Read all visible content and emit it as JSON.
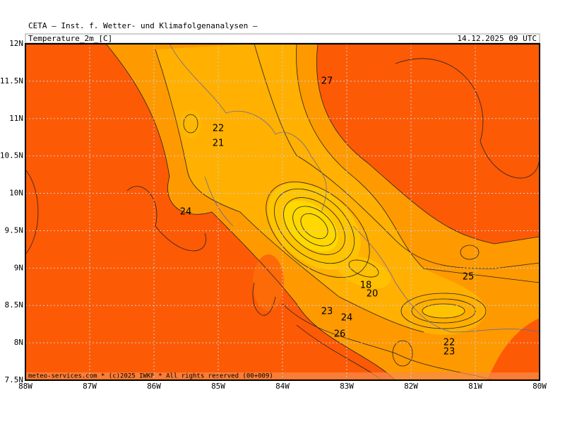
{
  "header": {
    "title": "CETA — Inst. f. Wetter- und Klimafolgenanalysen —",
    "variable": "Temperature_2m_[C]",
    "datetime": "14.12.2025 09 UTC"
  },
  "map": {
    "x_labels": [
      "88W",
      "87W",
      "86W",
      "85W",
      "84W",
      "83W",
      "82W",
      "81W",
      "80W"
    ],
    "y_labels": [
      "12N",
      "11.5N",
      "11N",
      "10.5N",
      "10N",
      "9.5N",
      "9N",
      "8.5N",
      "8N",
      "7.5N"
    ],
    "contour_labels": [
      27,
      22,
      21,
      24,
      18,
      20,
      23,
      24,
      26,
      25,
      22,
      23
    ]
  },
  "footer": "meteo-services.com * (c)2025 IWKF * All rights reserved (00+009)"
}
